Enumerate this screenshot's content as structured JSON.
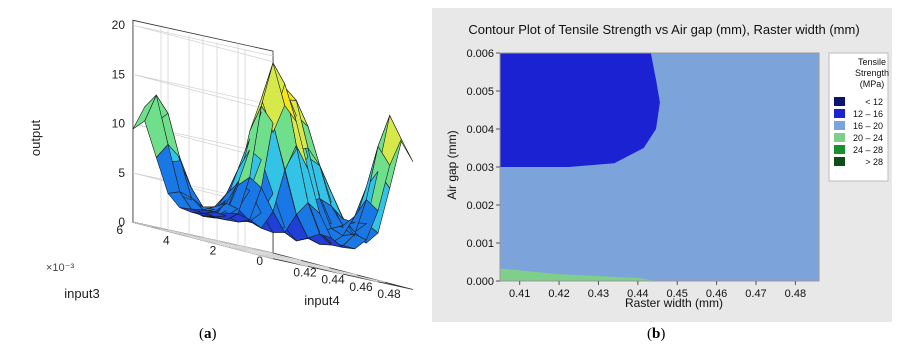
{
  "captions": {
    "a": "a",
    "b": "b"
  },
  "chart_data": [
    {
      "type": "surface3d",
      "zlabel": "output",
      "xlabel": "input4",
      "ylabel": "input3",
      "y_exponent": "×10⁻³",
      "z_ticks": [
        "0",
        "5",
        "10",
        "15",
        "20"
      ],
      "x_ticks": [
        "0.42",
        "0.44",
        "0.46",
        "0.48"
      ],
      "y_ticks": [
        "0",
        "2",
        "4",
        "6"
      ],
      "zlim": [
        0,
        20
      ],
      "xlim": [
        0.41,
        0.486
      ],
      "ylim": [
        0,
        6
      ],
      "colormap": [
        "#1f3fd6",
        "#1978e6",
        "#33c3e6",
        "#6fdf8c",
        "#d7e84a",
        "#f7e41a"
      ]
    },
    {
      "type": "contour",
      "title": "Contour Plot of Tensile Strength vs Air gap (mm), Raster width (mm)",
      "xlabel": "Raster width (mm)",
      "ylabel": "Air gap (mm)",
      "x_ticks": [
        "0.41",
        "0.42",
        "0.43",
        "0.44",
        "0.45",
        "0.46",
        "0.47",
        "0.48"
      ],
      "y_ticks": [
        "0.000",
        "0.001",
        "0.002",
        "0.003",
        "0.004",
        "0.005",
        "0.006"
      ],
      "xlim": [
        0.405,
        0.486
      ],
      "ylim": [
        0,
        0.006
      ],
      "legend": {
        "title": [
          "Tensile",
          "Strength",
          "(MPa)"
        ],
        "entries": [
          {
            "label": "<  12",
            "color": "#0b1470"
          },
          {
            "label": "12  –  16",
            "color": "#1b22d2"
          },
          {
            "label": "16  –  20",
            "color": "#7da4da"
          },
          {
            "label": "20  –  24",
            "color": "#7fcf8a"
          },
          {
            "label": "24  –  28",
            "color": "#18902e"
          },
          {
            "label": ">  28",
            "color": "#0d4d1a"
          }
        ]
      },
      "regions": [
        {
          "band": "16 – 20",
          "description": "background"
        },
        {
          "band": "12 – 16",
          "boundary": [
            [
              0.405,
              0.006
            ],
            [
              0.4433,
              0.006
            ],
            [
              0.4446,
              0.0053
            ],
            [
              0.4456,
              0.0047
            ],
            [
              0.4446,
              0.004
            ],
            [
              0.4415,
              0.0035
            ],
            [
              0.434,
              0.0031
            ],
            [
              0.4225,
              0.003
            ],
            [
              0.405,
              0.003
            ]
          ]
        },
        {
          "band": "20 – 24",
          "boundary": [
            [
              0.405,
              0
            ],
            [
              0.405,
              0.00033
            ],
            [
              0.42,
              0.00018
            ],
            [
              0.44,
              8e-05
            ],
            [
              0.4446,
              0
            ]
          ]
        }
      ]
    }
  ]
}
